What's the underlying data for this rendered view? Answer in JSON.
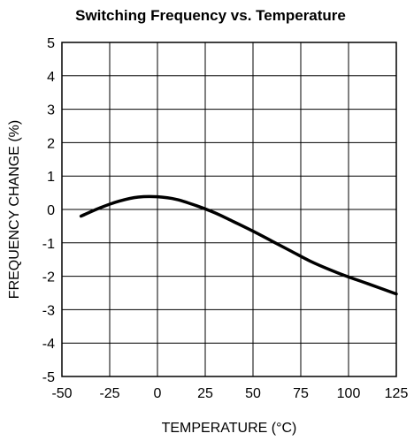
{
  "chart_data": {
    "type": "line",
    "title": "Switching Frequency vs. Temperature",
    "xlabel": "TEMPERATURE (°C)",
    "ylabel": "FREQUENCY CHANGE (%)",
    "xlim": [
      -50,
      125
    ],
    "ylim": [
      -5,
      5
    ],
    "xticks": [
      -50,
      -25,
      0,
      25,
      50,
      75,
      100,
      125
    ],
    "yticks": [
      -5,
      -4,
      -3,
      -2,
      -1,
      0,
      1,
      2,
      3,
      4,
      5
    ],
    "grid": true,
    "series": [
      {
        "x": [
          -40,
          -30,
          -20,
          -10,
          0,
          10,
          20,
          30,
          40,
          50,
          60,
          70,
          80,
          90,
          100,
          110,
          125
        ],
        "y": [
          -0.2,
          0.05,
          0.25,
          0.37,
          0.38,
          0.3,
          0.12,
          -0.1,
          -0.37,
          -0.65,
          -0.95,
          -1.25,
          -1.55,
          -1.8,
          -2.02,
          -2.22,
          -2.53
        ]
      }
    ]
  }
}
